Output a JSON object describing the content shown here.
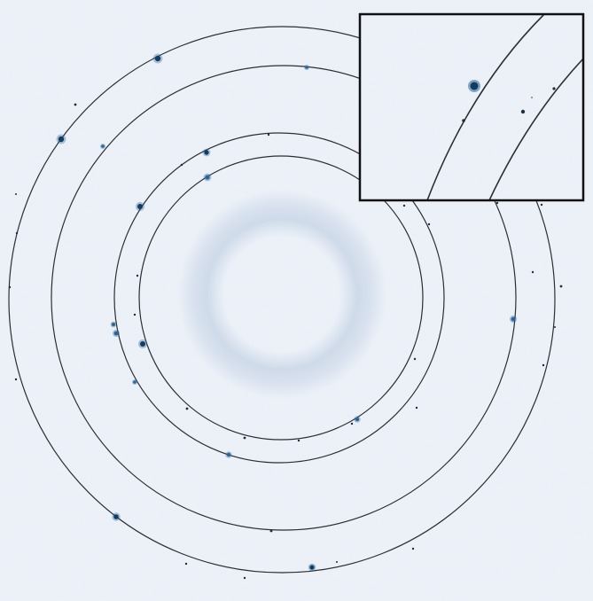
{
  "image": {
    "subject": "x-ray-powder-diffraction-pattern",
    "colors": {
      "background": "#edf2f9",
      "ring_line": "#2b2f33",
      "diffuse_halo": "#b7c8dd",
      "spot_dark": "#123d63",
      "spot_mid": "#2a6598",
      "inset_border": "#111111"
    }
  },
  "panels": [
    {
      "role": "main-diffraction-image"
    },
    {
      "role": "zoom-inset"
    }
  ]
}
